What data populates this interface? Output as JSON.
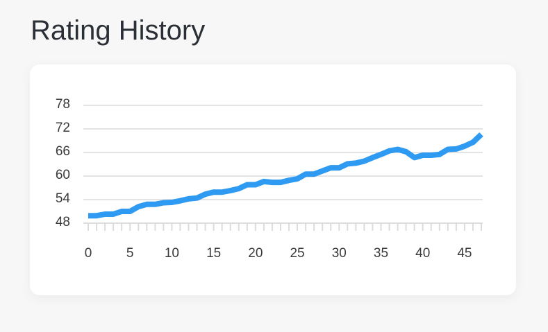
{
  "page": {
    "title": "Rating History"
  },
  "colors": {
    "line": "#2f9af2",
    "grid": "#dcdcdc",
    "card": "#ffffff",
    "background": "#f7f7f8"
  },
  "chart_data": {
    "type": "line",
    "title": "",
    "xlabel": "",
    "ylabel": "",
    "grid": true,
    "legend": "none",
    "xlim": [
      0,
      47
    ],
    "ylim": [
      48,
      78
    ],
    "x_ticks": [
      "0",
      "5",
      "10",
      "15",
      "20",
      "25",
      "30",
      "35",
      "40",
      "45"
    ],
    "y_ticks": [
      "48",
      "54",
      "60",
      "66",
      "72",
      "78"
    ],
    "series": [
      {
        "name": "",
        "x": [
          0,
          1,
          2,
          3,
          4,
          5,
          6,
          7,
          8,
          9,
          10,
          11,
          12,
          13,
          14,
          15,
          16,
          17,
          18,
          19,
          20,
          21,
          22,
          23,
          24,
          25,
          26,
          27,
          28,
          29,
          30,
          31,
          32,
          33,
          34,
          35,
          36,
          37,
          38,
          39,
          40,
          41,
          42,
          43,
          44,
          45,
          46,
          47
        ],
        "y": [
          49.9,
          49.9,
          50.3,
          50.3,
          51.0,
          51.0,
          52.2,
          52.8,
          52.8,
          53.2,
          53.3,
          53.7,
          54.2,
          54.4,
          55.4,
          55.9,
          55.9,
          56.3,
          56.8,
          57.8,
          57.8,
          58.6,
          58.4,
          58.4,
          58.9,
          59.3,
          60.5,
          60.5,
          61.3,
          62.1,
          62.1,
          63.1,
          63.3,
          63.8,
          64.7,
          65.5,
          66.4,
          66.8,
          66.2,
          64.7,
          65.3,
          65.3,
          65.5,
          66.8,
          66.9,
          67.6,
          68.6,
          70.6
        ]
      }
    ]
  }
}
